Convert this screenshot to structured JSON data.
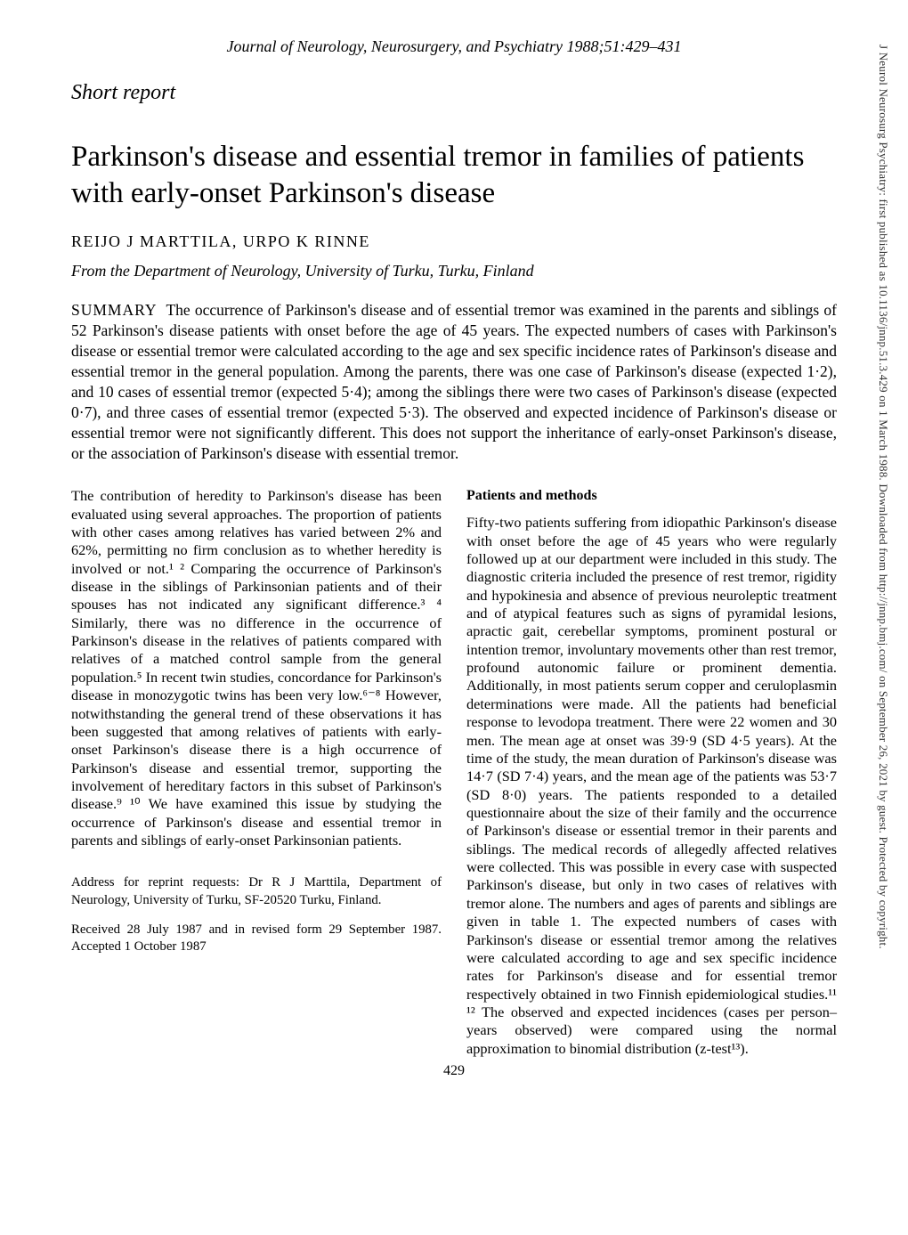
{
  "banner_text": "J Neurol Neurosurg Psychiatry: first published as 10.1136/jnnp.51.3.429 on 1 March 1988. Downloaded from http://jnnp.bmj.com/ on September 26, 2021 by guest. Protected by copyright.",
  "journal_header": "Journal of Neurology, Neurosurgery, and Psychiatry 1988;51:429–431",
  "section_label": "Short report",
  "title": "Parkinson's disease and essential tremor in families of patients with early-onset Parkinson's disease",
  "authors": "REIJO J MARTTILA, URPO K RINNE",
  "affiliation": "From the Department of Neurology, University of Turku, Turku, Finland",
  "summary_label": "SUMMARY",
  "abstract_text": "The occurrence of Parkinson's disease and of essential tremor was examined in the parents and siblings of 52 Parkinson's disease patients with onset before the age of 45 years. The expected numbers of cases with Parkinson's disease or essential tremor were calculated according to the age and sex specific incidence rates of Parkinson's disease and essential tremor in the general population. Among the parents, there was one case of Parkinson's disease (expected 1·2), and 10 cases of essential tremor (expected 5·4); among the siblings there were two cases of Parkinson's disease (expected 0·7), and three cases of essential tremor (expected 5·3). The observed and expected incidence of Parkinson's disease or essential tremor were not significantly different. This does not support the inheritance of early-onset Parkinson's disease, or the association of Parkinson's disease with essential tremor.",
  "left_col_intro": "The contribution of heredity to Parkinson's disease has been evaluated using several approaches. The proportion of patients with other cases among relatives has varied between 2% and 62%, permitting no firm conclusion as to whether heredity is involved or not.¹ ² Comparing the occurrence of Parkinson's disease in the siblings of Parkinsonian patients and of their spouses has not indicated any significant difference.³ ⁴ Similarly, there was no difference in the occurrence of Parkinson's disease in the relatives of patients compared with relatives of a matched control sample from the general population.⁵ In recent twin studies, concordance for Parkinson's disease in monozygotic twins has been very low.⁶⁻⁸ However, notwithstanding the general trend of these observations it has been suggested that among relatives of patients with early-onset Parkinson's disease there is a high occurrence of Parkinson's disease and essential tremor, supporting the involvement of hereditary factors in this subset of Parkinson's disease.⁹ ¹⁰ We have examined this issue by studying the occurrence of Parkinson's disease and essential tremor in parents and siblings of early-onset Parkinsonian patients.",
  "address_line": "Address for reprint requests: Dr R J Marttila, Department of Neurology, University of Turku, SF-20520 Turku, Finland.",
  "received_line": "Received 28 July 1987 and in revised form 29 September 1987. Accepted 1 October 1987",
  "methods_heading": "Patients and methods",
  "methods_text": "Fifty-two patients suffering from idiopathic Parkinson's disease with onset before the age of 45 years who were regularly followed up at our department were included in this study. The diagnostic criteria included the presence of rest tremor, rigidity and hypokinesia and absence of previous neuroleptic treatment and of atypical features such as signs of pyramidal lesions, apractic gait, cerebellar symptoms, prominent postural or intention tremor, involuntary movements other than rest tremor, profound autonomic failure or prominent dementia. Additionally, in most patients serum copper and ceruloplasmin determinations were made. All the patients had beneficial response to levodopa treatment. There were 22 women and 30 men. The mean age at onset was 39·9 (SD 4·5 years). At the time of the study, the mean duration of Parkinson's disease was 14·7 (SD 7·4) years, and the mean age of the patients was 53·7 (SD 8·0) years. The patients responded to a detailed questionnaire about the size of their family and the occurrence of Parkinson's disease or essential tremor in their parents and siblings. The medical records of allegedly affected relatives were collected. This was possible in every case with suspected Parkinson's disease, but only in two cases of relatives with tremor alone. The numbers and ages of parents and siblings are given in table 1. The expected numbers of cases with Parkinson's disease or essential tremor among the relatives were calculated according to age and sex specific incidence rates for Parkinson's disease and for essential tremor respectively obtained in two Finnish epidemiological studies.¹¹ ¹² The observed and expected incidences (cases per person–years observed) were compared using the normal approximation to binomial distribution (z-test¹³).",
  "page_number": "429"
}
